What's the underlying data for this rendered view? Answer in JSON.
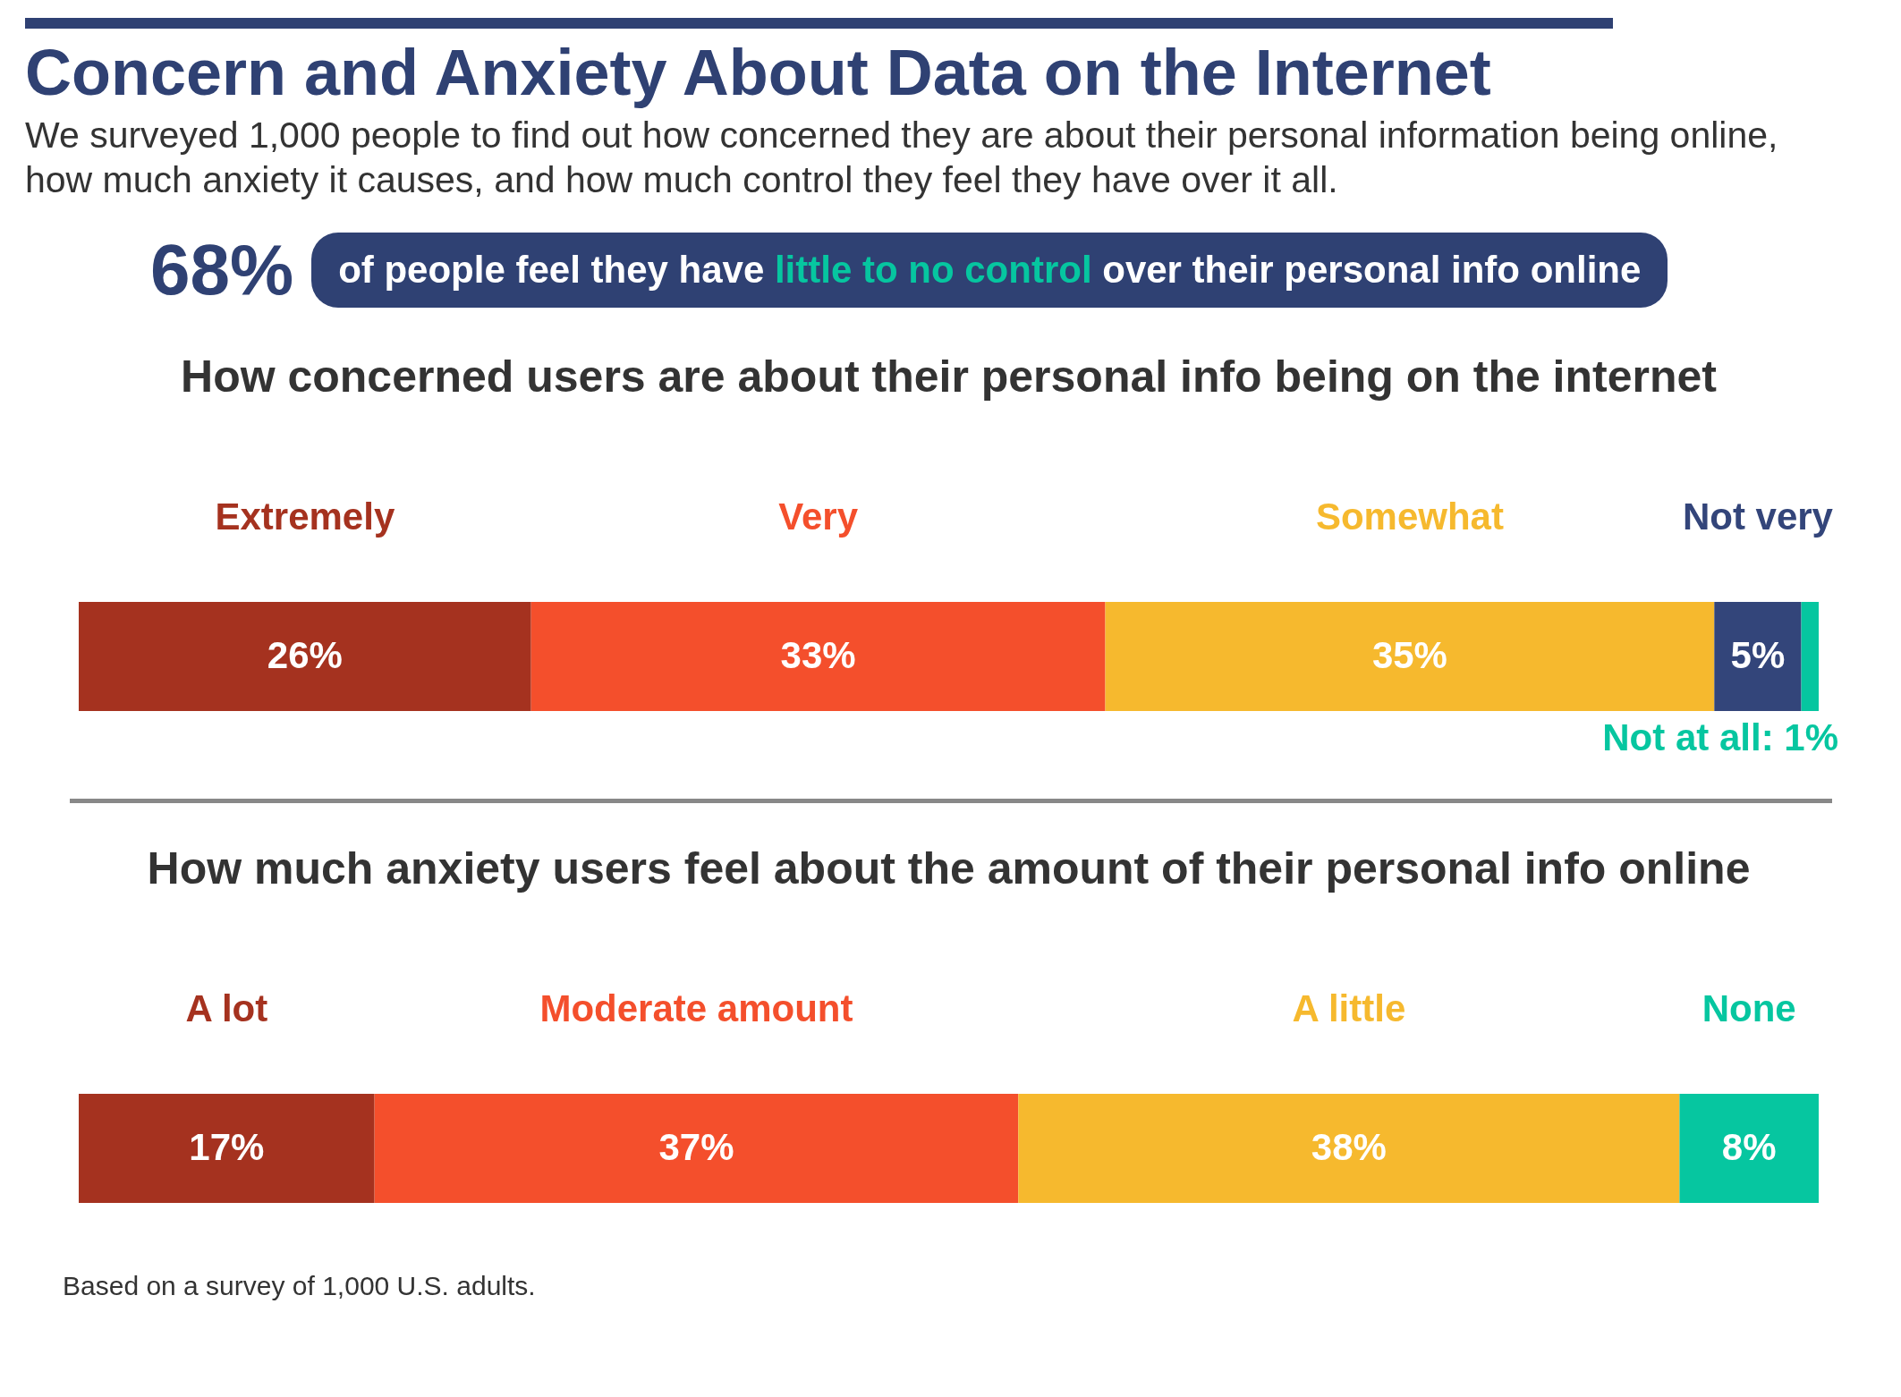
{
  "chart_data": [
    {
      "type": "other",
      "title": "Concern and Anxiety About Data on the Internet",
      "subtitle": "We surveyed 1,000 people to find out how concerned they are about their personal information being online, how much anxiety it causes, and how much control they feel they have over it all.",
      "annotations": [
        "68%",
        "of people feel they have",
        "little to no control",
        "over their personal info online"
      ]
    },
    {
      "type": "bar",
      "title": "How concerned users are about their personal info being on the internet",
      "orientation": "horizontal",
      "stacked": true,
      "tick_labels": false,
      "categories": [
        null
      ],
      "series": [
        {
          "name": "Extremely",
          "color": "#a5321f",
          "values": [
            26
          ],
          "value_labels": [
            "26%"
          ]
        },
        {
          "name": "Very",
          "color": "#f44f2c",
          "values": [
            33
          ],
          "value_labels": [
            "33%"
          ]
        },
        {
          "name": "Somewhat",
          "color": "#f6b92e",
          "values": [
            35
          ],
          "value_labels": [
            "35%"
          ]
        },
        {
          "name": "Not very",
          "color": "#33457a",
          "values": [
            5
          ],
          "value_labels": [
            "5%"
          ]
        },
        {
          "color": "#06c6a0",
          "values": [
            1
          ],
          "value_labels": [
            "Not at all: 1%"
          ]
        }
      ]
    },
    {
      "type": "bar",
      "title": "How much anxiety users feel about the amount of their personal info online",
      "orientation": "horizontal",
      "stacked": true,
      "tick_labels": false,
      "categories": [
        null
      ],
      "annotations": [
        "Based on a survey of 1,000 U.S. adults."
      ],
      "series": [
        {
          "name": "A lot",
          "color": "#a5321f",
          "values": [
            17
          ],
          "value_labels": [
            "17%"
          ]
        },
        {
          "name": "Moderate amount",
          "color": "#f44f2c",
          "values": [
            37
          ],
          "value_labels": [
            "37%"
          ]
        },
        {
          "name": "A little",
          "color": "#f6b92e",
          "values": [
            38
          ],
          "value_labels": [
            "38%"
          ]
        },
        {
          "name": "None",
          "color": "#06c6a0",
          "values": [
            8
          ],
          "value_labels": [
            "8%"
          ]
        }
      ]
    }
  ]
}
